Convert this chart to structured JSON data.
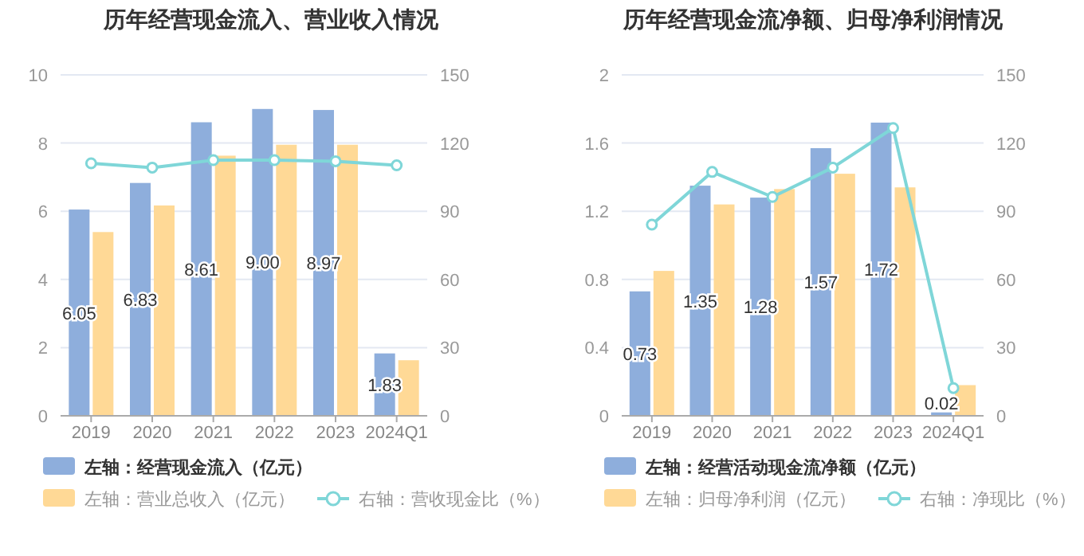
{
  "chart_data": [
    {
      "type": "bar",
      "title": "历年经营现金流入、营业收入情况",
      "categories": [
        "2019",
        "2020",
        "2021",
        "2022",
        "2023",
        "2024Q1"
      ],
      "ylim": [
        0,
        10
      ],
      "yticks": [
        0,
        2,
        4,
        6,
        8,
        10
      ],
      "y2lim": [
        0,
        150
      ],
      "y2ticks": [
        0,
        30,
        60,
        90,
        120,
        150
      ],
      "grid": "y",
      "legend": "bottom",
      "marker": "circle",
      "series": [
        {
          "name": "左轴：经营现金流入（亿元）",
          "color": "#8eaedc",
          "values": [
            6.05,
            6.83,
            8.61,
            9.0,
            8.97,
            1.83
          ],
          "value_labels": [
            "6.05",
            "6.83",
            "8.61",
            "9.00",
            "8.97",
            "1.83"
          ]
        },
        {
          "name": "左轴：营业总收入（亿元）",
          "color": "#ffd996",
          "values": [
            5.39,
            6.17,
            7.63,
            7.95,
            7.95,
            1.63
          ]
        },
        {
          "name": "右轴：营收现金比（%）",
          "color": "#7fd6d8",
          "type": "line",
          "axis": "y2",
          "values": [
            111.1,
            109.2,
            112.5,
            112.5,
            112.0,
            110.2
          ]
        }
      ]
    },
    {
      "type": "bar",
      "title": "历年经营现金流净额、归母净利润情况",
      "categories": [
        "2019",
        "2020",
        "2021",
        "2022",
        "2023",
        "2024Q1"
      ],
      "ylim": [
        0,
        2
      ],
      "yticks": [
        0,
        0.4,
        0.8,
        1.2,
        1.6,
        2
      ],
      "y2lim": [
        0,
        150
      ],
      "y2ticks": [
        0,
        30,
        60,
        90,
        120,
        150
      ],
      "grid": "y",
      "legend": "bottom",
      "marker": "circle",
      "series": [
        {
          "name": "左轴：经营活动现金流净额（亿元）",
          "color": "#8eaedc",
          "values": [
            0.73,
            1.35,
            1.28,
            1.57,
            1.72,
            0.02
          ],
          "value_labels": [
            "0.73",
            "1.35",
            "1.28",
            "1.57",
            "1.72",
            "0.02"
          ]
        },
        {
          "name": "左轴：归母净利润（亿元）",
          "color": "#ffd996",
          "values": [
            0.85,
            1.24,
            1.33,
            1.42,
            1.34,
            0.18
          ]
        },
        {
          "name": "右轴：净现比（%）",
          "color": "#7fd6d8",
          "type": "line",
          "axis": "y2",
          "values": [
            84.1,
            107.3,
            96.3,
            109.2,
            126.6,
            12.2
          ]
        }
      ]
    }
  ]
}
